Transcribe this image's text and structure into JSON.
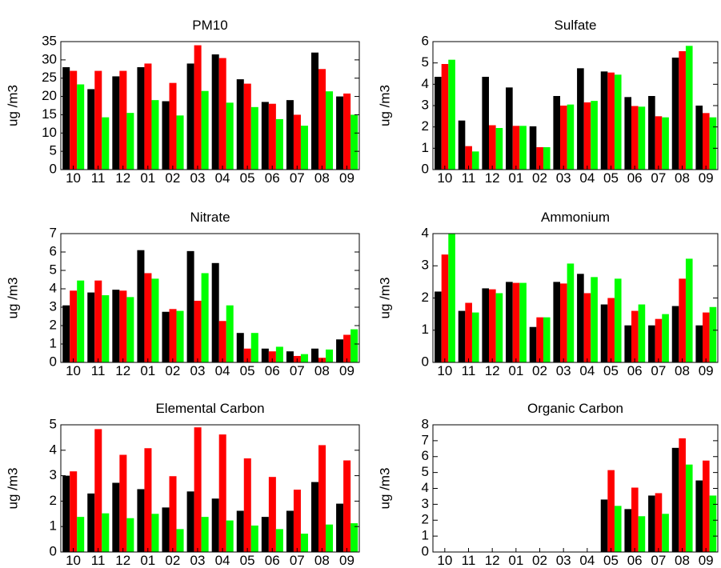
{
  "colors": {
    "series1": "#000000",
    "series2": "#ff0000",
    "series3": "#00ff00"
  },
  "chart_data": [
    {
      "type": "bar",
      "title": "PM10",
      "ylabel": "ug /m3",
      "xlabel": "",
      "ylim": [
        0,
        35
      ],
      "yticks": [
        0,
        5,
        10,
        15,
        20,
        25,
        30,
        35
      ],
      "categories": [
        "10",
        "11",
        "12",
        "01",
        "02",
        "03",
        "04",
        "05",
        "06",
        "07",
        "08",
        "09"
      ],
      "series": [
        {
          "values": [
            28,
            22,
            25.5,
            28,
            18.7,
            29,
            31.5,
            24.7,
            18.5,
            19,
            32,
            20
          ]
        },
        {
          "values": [
            27,
            27,
            27,
            29,
            23.7,
            34,
            30.5,
            23.5,
            18,
            15,
            27.5,
            20.8
          ]
        },
        {
          "values": [
            23.3,
            14.3,
            15.5,
            19,
            14.8,
            21.5,
            18.3,
            17.1,
            13.8,
            12,
            21.4,
            15
          ]
        }
      ]
    },
    {
      "type": "bar",
      "title": "Sulfate",
      "ylabel": "ug /m3",
      "xlabel": "",
      "ylim": [
        0,
        6
      ],
      "yticks": [
        0,
        1,
        2,
        3,
        4,
        5,
        6
      ],
      "categories": [
        "10",
        "11",
        "12",
        "01",
        "02",
        "03",
        "04",
        "05",
        "06",
        "07",
        "08",
        "09"
      ],
      "series": [
        {
          "values": [
            4.35,
            2.3,
            4.35,
            3.85,
            2.03,
            3.45,
            4.75,
            4.6,
            3.4,
            3.45,
            5.25,
            3
          ]
        },
        {
          "values": [
            4.95,
            1.1,
            2.08,
            2.05,
            1.05,
            3,
            3.15,
            4.55,
            2.98,
            2.5,
            5.55,
            2.65
          ]
        },
        {
          "values": [
            5.15,
            0.85,
            1.95,
            2.05,
            1.05,
            3.05,
            3.22,
            4.45,
            2.95,
            2.45,
            5.8,
            2.45
          ]
        }
      ]
    },
    {
      "type": "bar",
      "title": "Nitrate",
      "ylabel": "ug /m3",
      "xlabel": "",
      "ylim": [
        0,
        7
      ],
      "yticks": [
        0,
        1,
        2,
        3,
        4,
        5,
        6,
        7
      ],
      "categories": [
        "10",
        "11",
        "12",
        "01",
        "02",
        "03",
        "04",
        "05",
        "06",
        "07",
        "08",
        "09"
      ],
      "series": [
        {
          "values": [
            3.1,
            3.8,
            3.95,
            6.1,
            2.75,
            6.05,
            5.4,
            1.6,
            0.75,
            0.6,
            0.75,
            1.25
          ]
        },
        {
          "values": [
            3.9,
            4.45,
            3.9,
            4.85,
            2.9,
            3.35,
            2.25,
            0.75,
            0.6,
            0.35,
            0.25,
            1.5
          ]
        },
        {
          "values": [
            4.45,
            3.65,
            3.55,
            4.55,
            2.8,
            4.85,
            3.1,
            1.6,
            0.85,
            0.45,
            0.7,
            1.8
          ]
        }
      ]
    },
    {
      "type": "bar",
      "title": "Ammonium",
      "ylabel": "ug /m3",
      "xlabel": "",
      "ylim": [
        0,
        4
      ],
      "yticks": [
        0,
        1,
        2,
        3,
        4
      ],
      "categories": [
        "10",
        "11",
        "12",
        "01",
        "02",
        "03",
        "04",
        "05",
        "06",
        "07",
        "08",
        "09"
      ],
      "series": [
        {
          "values": [
            2.2,
            1.6,
            2.3,
            2.5,
            1.1,
            2.5,
            2.75,
            1.8,
            1.15,
            1.15,
            1.75,
            1.15
          ]
        },
        {
          "values": [
            3.35,
            1.85,
            2.27,
            2.47,
            1.4,
            2.45,
            2.15,
            2,
            1.6,
            1.35,
            2.6,
            1.55
          ]
        },
        {
          "values": [
            4,
            1.55,
            2.15,
            2.47,
            1.4,
            3.07,
            2.65,
            2.6,
            1.8,
            1.5,
            3.22,
            1.72
          ]
        }
      ]
    },
    {
      "type": "bar",
      "title": "Elemental Carbon",
      "ylabel": "ug /m3",
      "xlabel": "",
      "ylim": [
        0,
        5
      ],
      "yticks": [
        0,
        1,
        2,
        3,
        4,
        5
      ],
      "categories": [
        "10",
        "11",
        "12",
        "01",
        "02",
        "03",
        "04",
        "05",
        "06",
        "07",
        "08",
        "09"
      ],
      "series": [
        {
          "values": [
            3,
            2.3,
            2.72,
            2.47,
            1.75,
            2.38,
            2.1,
            1.62,
            1.38,
            1.62,
            2.75,
            1.9
          ]
        },
        {
          "values": [
            3.17,
            4.83,
            3.82,
            4.08,
            2.98,
            4.9,
            4.62,
            3.68,
            2.95,
            2.45,
            4.2,
            3.6
          ]
        },
        {
          "values": [
            1.38,
            1.52,
            1.33,
            1.5,
            0.9,
            1.38,
            1.24,
            1.04,
            0.9,
            0.72,
            1.08,
            1.13
          ]
        }
      ]
    },
    {
      "type": "bar",
      "title": "Organic Carbon",
      "ylabel": "ug /m3",
      "xlabel": "",
      "ylim": [
        0,
        8
      ],
      "yticks": [
        0,
        1,
        2,
        3,
        4,
        5,
        6,
        7,
        8
      ],
      "categories": [
        "10",
        "11",
        "12",
        "01",
        "02",
        "03",
        "04",
        "05",
        "06",
        "07",
        "08",
        "09"
      ],
      "series": [
        {
          "values": [
            0,
            0,
            0,
            0,
            0,
            0,
            0,
            3.3,
            2.7,
            3.55,
            6.55,
            4.5
          ]
        },
        {
          "values": [
            0,
            0,
            0,
            0,
            0,
            0,
            0,
            5.15,
            4.05,
            3.7,
            7.15,
            5.75
          ]
        },
        {
          "values": [
            0,
            0,
            0,
            0,
            0,
            0,
            0,
            2.9,
            2.25,
            2.4,
            5.5,
            3.55
          ]
        }
      ]
    }
  ]
}
